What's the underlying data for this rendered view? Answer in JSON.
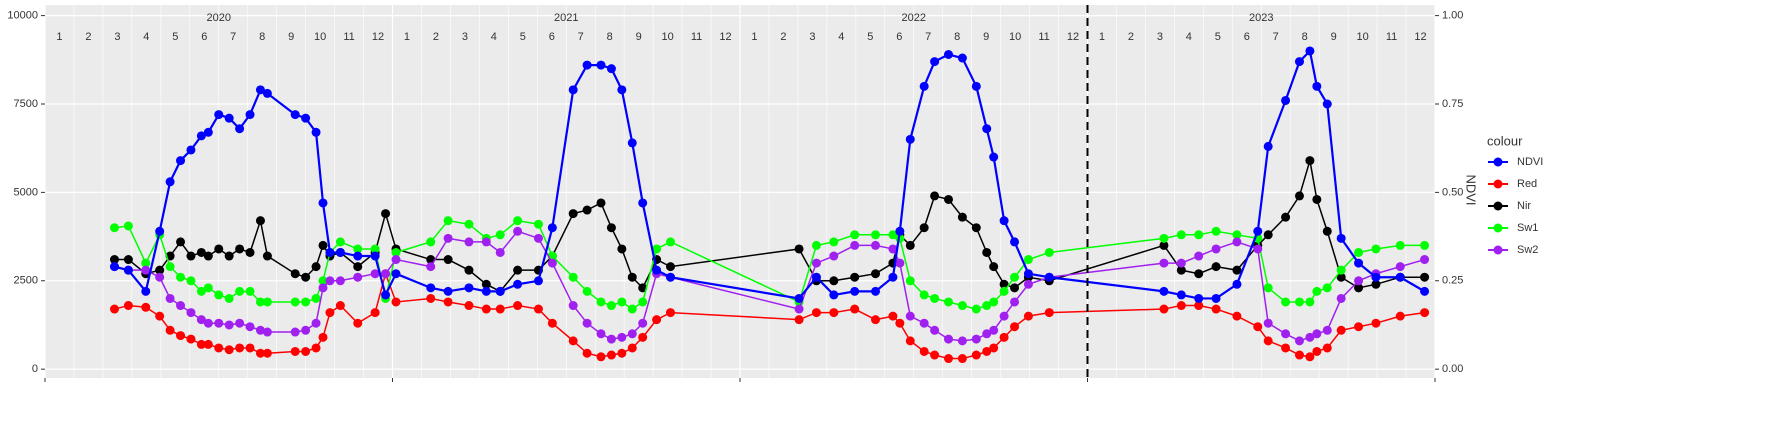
{
  "chart_data": {
    "type": "line",
    "x": [
      2020.2,
      2020.24,
      2020.29,
      2020.33,
      2020.36,
      2020.39,
      2020.42,
      2020.45,
      2020.47,
      2020.5,
      2020.53,
      2020.56,
      2020.59,
      2020.62,
      2020.64,
      2020.72,
      2020.75,
      2020.78,
      2020.8,
      2020.82,
      2020.85,
      2020.9,
      2020.95,
      2020.98,
      2021.01,
      2021.11,
      2021.16,
      2021.22,
      2021.27,
      2021.31,
      2021.36,
      2021.42,
      2021.46,
      2021.52,
      2021.56,
      2021.6,
      2021.63,
      2021.66,
      2021.69,
      2021.72,
      2021.76,
      2021.8,
      2022.17,
      2022.22,
      2022.27,
      2022.33,
      2022.39,
      2022.44,
      2022.46,
      2022.49,
      2022.53,
      2022.56,
      2022.6,
      2022.64,
      2022.68,
      2022.71,
      2022.73,
      2022.76,
      2022.79,
      2022.83,
      2022.89,
      2023.22,
      2023.27,
      2023.32,
      2023.37,
      2023.43,
      2023.49,
      2023.52,
      2023.57,
      2023.61,
      2023.64,
      2023.66,
      2023.69,
      2023.73,
      2023.78,
      2023.83,
      2023.9,
      2023.97
    ],
    "series": [
      {
        "name": "NDVI",
        "color": "#0000ff",
        "axis": "y2",
        "values": [
          0.29,
          0.28,
          0.22,
          0.39,
          0.53,
          0.59,
          0.62,
          0.66,
          0.67,
          0.72,
          0.71,
          0.68,
          0.72,
          0.79,
          0.78,
          0.72,
          0.71,
          0.67,
          0.47,
          0.33,
          0.33,
          0.32,
          0.32,
          0.21,
          0.27,
          0.23,
          0.22,
          0.23,
          0.22,
          0.22,
          0.24,
          0.25,
          0.4,
          0.79,
          0.86,
          0.86,
          0.85,
          0.79,
          0.64,
          0.47,
          0.28,
          0.26,
          0.2,
          0.26,
          0.21,
          0.22,
          0.22,
          0.26,
          0.39,
          0.65,
          0.8,
          0.87,
          0.89,
          0.88,
          0.8,
          0.68,
          0.6,
          0.42,
          0.36,
          0.27,
          0.26,
          0.22,
          0.21,
          0.2,
          0.2,
          0.24,
          0.39,
          0.63,
          0.76,
          0.87,
          0.9,
          0.8,
          0.75,
          0.37,
          0.3,
          0.26,
          0.26,
          0.22
        ]
      },
      {
        "name": "Red",
        "color": "#ff0000",
        "values": [
          1700,
          1800,
          1750,
          1500,
          1100,
          950,
          850,
          700,
          700,
          600,
          550,
          600,
          600,
          450,
          450,
          500,
          500,
          600,
          900,
          1600,
          1800,
          1300,
          1600,
          2700,
          1900,
          2000,
          1900,
          1800,
          1700,
          1700,
          1800,
          1700,
          1300,
          800,
          450,
          350,
          400,
          450,
          600,
          900,
          1400,
          1600,
          1400,
          1600,
          1600,
          1700,
          1400,
          1500,
          1300,
          800,
          500,
          400,
          300,
          300,
          400,
          500,
          600,
          900,
          1200,
          1500,
          1600,
          1700,
          1800,
          1800,
          1700,
          1500,
          1200,
          800,
          600,
          400,
          350,
          500,
          600,
          1100,
          1200,
          1300,
          1500,
          1600
        ]
      },
      {
        "name": "Nir",
        "color": "#000000",
        "values": [
          3100,
          3100,
          2700,
          2800,
          3200,
          3600,
          3200,
          3300,
          3200,
          3400,
          3200,
          3400,
          3300,
          4200,
          3200,
          2700,
          2600,
          2900,
          3500,
          3200,
          3300,
          2900,
          3300,
          4400,
          3400,
          3100,
          3100,
          2800,
          2400,
          2200,
          2800,
          2800,
          3200,
          4400,
          4500,
          4700,
          4000,
          3400,
          2600,
          2300,
          3100,
          2900,
          3400,
          2500,
          2500,
          2600,
          2700,
          3000,
          3800,
          3500,
          4000,
          4900,
          4800,
          4300,
          4000,
          3300,
          2900,
          2400,
          2300,
          2600,
          2500,
          3500,
          2800,
          2700,
          2900,
          2800,
          3500,
          3800,
          4300,
          4900,
          5900,
          4800,
          3900,
          2600,
          2300,
          2400,
          2600,
          2600
        ]
      },
      {
        "name": "Sw1",
        "color": "#00ff00",
        "values": [
          4000,
          4050,
          3000,
          3800,
          2900,
          2600,
          2500,
          2200,
          2300,
          2100,
          2000,
          2200,
          2200,
          1900,
          1900,
          1900,
          1900,
          2000,
          2500,
          3300,
          3600,
          3400,
          3400,
          2000,
          3300,
          3600,
          4200,
          4100,
          3700,
          3800,
          4200,
          4100,
          3200,
          2600,
          2200,
          1900,
          1800,
          1900,
          1700,
          1900,
          3400,
          3600,
          1900,
          3500,
          3600,
          3800,
          3800,
          3800,
          3700,
          2500,
          2100,
          2000,
          1900,
          1800,
          1700,
          1800,
          1900,
          2200,
          2600,
          3100,
          3300,
          3700,
          3800,
          3800,
          3900,
          3800,
          3700,
          2300,
          1900,
          1900,
          1900,
          2200,
          2300,
          2800,
          3300,
          3400,
          3500,
          3500
        ]
      },
      {
        "name": "Sw2",
        "color": "#a020f0",
        "values": [
          2900,
          2800,
          2800,
          2600,
          2000,
          1800,
          1600,
          1400,
          1300,
          1300,
          1250,
          1300,
          1200,
          1100,
          1050,
          1050,
          1100,
          1300,
          2300,
          2500,
          2500,
          2600,
          2700,
          2700,
          3100,
          2900,
          3700,
          3600,
          3600,
          3300,
          3900,
          3700,
          3000,
          1800,
          1300,
          1000,
          850,
          900,
          1000,
          1300,
          2700,
          2600,
          1700,
          3000,
          3200,
          3500,
          3500,
          3400,
          3000,
          1500,
          1300,
          1100,
          850,
          800,
          850,
          1000,
          1100,
          1500,
          1900,
          2400,
          2600,
          3000,
          3000,
          3200,
          3400,
          3600,
          3400,
          1300,
          1000,
          800,
          900,
          1000,
          1100,
          2000,
          2500,
          2700,
          2900,
          3100
        ]
      }
    ],
    "xlim": [
      2020,
      2024
    ],
    "xticks": [
      2020,
      2021,
      2022,
      2023,
      2024
    ],
    "year_labels": [
      "2020",
      "2021",
      "2022",
      "2023"
    ],
    "month_labels": [
      "1",
      "2",
      "3",
      "4",
      "5",
      "6",
      "7",
      "8",
      "9",
      "10",
      "11",
      "12"
    ],
    "ylim": [
      -250,
      10300
    ],
    "yticks": [
      0,
      2500,
      5000,
      7500,
      10000
    ],
    "y2lim": [
      -0.025,
      1.03
    ],
    "y2ticks": [
      {
        "value": 0,
        "label": "0.00"
      },
      {
        "value": 0.25,
        "label": "0.25"
      },
      {
        "value": 0.5,
        "label": "0.50"
      },
      {
        "value": 0.75,
        "label": "0.75"
      },
      {
        "value": 1,
        "label": "1.00"
      }
    ],
    "y2_label": "NDVI",
    "legend_title": "colour",
    "vline": 2023,
    "grid": true
  }
}
